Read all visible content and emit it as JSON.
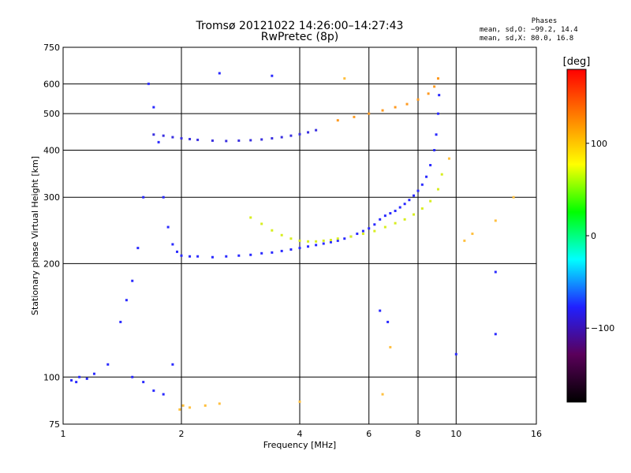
{
  "header": {
    "title_line1": "Tromsø 20121022 14:26:00–14:27:43",
    "title_line2": "RwPretec (8p)"
  },
  "phases_panel": {
    "title": "Phases",
    "line1": "mean, sd,O: −99.2, 14.4",
    "line2": "mean, sd,X:  80.0, 16.8"
  },
  "colorbar": {
    "label": "[deg]",
    "ticks": [
      "100",
      "0",
      "−100"
    ],
    "tick_values": [
      100,
      0,
      -100
    ],
    "range": [
      -180,
      180
    ],
    "colors": [
      "#000000",
      "#5a005a",
      "#2020ff",
      "#00ffff",
      "#00ff00",
      "#ffff00",
      "#ff8000",
      "#ff0000"
    ]
  },
  "chart_data": {
    "type": "scatter",
    "title": "Tromsø 20121022 14:26:00–14:27:43",
    "subtitle": "RwPretec (8p)",
    "xlabel": "Frequency [MHz]",
    "ylabel": "Stationary phase Virtual Height [km]",
    "xscale": "log",
    "yscale": "log",
    "xlim": [
      1,
      16
    ],
    "ylim": [
      75,
      750
    ],
    "xticks": [
      1,
      2,
      4,
      6,
      8,
      10,
      16
    ],
    "xtick_labels": [
      "1",
      "2",
      "4",
      "6",
      "8",
      "10",
      "16"
    ],
    "yticks": [
      75,
      100,
      200,
      300,
      400,
      500,
      600,
      750
    ],
    "ytick_labels": [
      "75",
      "100",
      "200",
      "300",
      "400",
      "500",
      "600",
      "750"
    ],
    "grid": true,
    "series": [
      {
        "color": "#2a2aff",
        "x": [
          1.4,
          1.45,
          1.5,
          1.55,
          1.6,
          1.65,
          1.7,
          1.75,
          1.8,
          1.85,
          1.9,
          1.95,
          2.0,
          2.1,
          2.2,
          2.4,
          2.6,
          2.8,
          3.0,
          3.2,
          3.4,
          3.6,
          3.8,
          4.0,
          4.2,
          4.4,
          4.6,
          4.8,
          5.0,
          5.2,
          5.4,
          5.6,
          5.8,
          6.0,
          6.2,
          6.4,
          6.6,
          6.8,
          7.0,
          7.2,
          7.4,
          7.6,
          7.8,
          8.0,
          8.2,
          8.4,
          8.6,
          8.8,
          8.9,
          9.0,
          9.05
        ],
        "y": [
          140,
          160,
          180,
          220,
          300,
          600,
          520,
          420,
          300,
          250,
          225,
          215,
          210,
          209,
          209,
          208,
          209,
          210,
          211,
          213,
          214,
          216,
          218,
          220,
          222,
          224,
          226,
          228,
          230,
          233,
          236,
          240,
          244,
          248,
          254,
          262,
          268,
          272,
          276,
          282,
          288,
          295,
          303,
          312,
          324,
          340,
          365,
          400,
          440,
          500,
          560
        ]
      },
      {
        "color": "#3a30e0",
        "x": [
          1.7,
          1.8,
          1.9,
          2.0,
          2.1,
          2.2,
          2.4,
          2.6,
          2.8,
          3.0,
          3.2,
          3.4,
          3.6,
          3.8,
          4.0,
          4.2,
          4.4
        ],
        "y": [
          440,
          437,
          433,
          430,
          428,
          426,
          424,
          423,
          424,
          425,
          427,
          430,
          433,
          437,
          441,
          446,
          452
        ]
      },
      {
        "color": "#d8ee20",
        "x": [
          3.0,
          3.2,
          3.4,
          3.6,
          3.8,
          4.0,
          4.2,
          4.4,
          4.6,
          4.8,
          5.0,
          5.4,
          5.8,
          6.2,
          6.6,
          7.0,
          7.4,
          7.8,
          8.2,
          8.6,
          9.0,
          9.2
        ],
        "y": [
          265,
          255,
          245,
          238,
          233,
          230,
          229,
          229,
          230,
          231,
          233,
          236,
          240,
          244,
          250,
          256,
          262,
          270,
          280,
          293,
          315,
          345
        ]
      },
      {
        "color": "#ff9a20",
        "x": [
          5.0,
          5.5,
          6.0,
          6.5,
          7.0,
          7.5,
          8.0,
          8.5,
          8.8,
          9.0
        ],
        "y": [
          480,
          490,
          500,
          510,
          520,
          530,
          545,
          565,
          590,
          620
        ]
      },
      {
        "color": "#2a2aff",
        "x": [
          1.05,
          1.08,
          1.1,
          1.15,
          1.2,
          1.3,
          1.5,
          1.6,
          1.7,
          1.8,
          1.9,
          2.5,
          3.4,
          6.4,
          6.7,
          10.0,
          12.6,
          12.6
        ],
        "y": [
          98,
          97,
          100,
          99,
          102,
          108,
          100,
          97,
          92,
          90,
          108,
          640,
          630,
          150,
          140,
          115,
          130,
          190
        ]
      },
      {
        "color": "#ffc040",
        "x": [
          1.98,
          2.02,
          2.1,
          2.3,
          2.5,
          4.0,
          5.2,
          6.5,
          6.8,
          9.6,
          10.5,
          11.0,
          12.6,
          14.0
        ],
        "y": [
          82,
          84,
          83,
          84,
          85,
          86,
          620,
          90,
          120,
          380,
          230,
          240,
          260,
          300
        ]
      }
    ]
  }
}
